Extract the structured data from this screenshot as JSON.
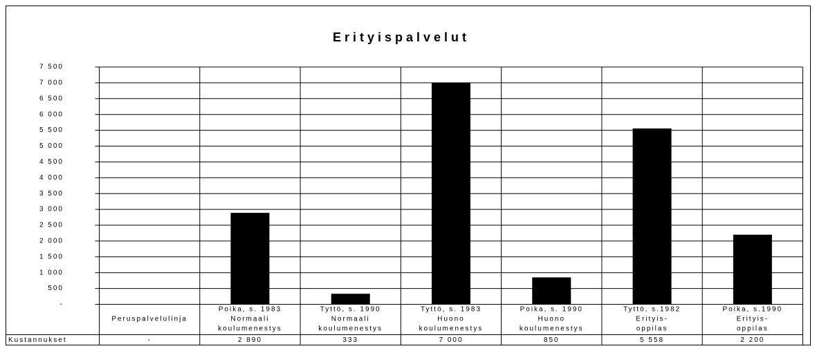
{
  "chart_data": {
    "type": "bar",
    "title": "Erityispalvelut",
    "categories": [
      [
        "Peruspalvelulinja"
      ],
      [
        "Poika, s. 1983",
        "Normaali",
        "koulumenestys"
      ],
      [
        "Tyttö, s. 1990",
        "Normaali",
        "koulumenestys"
      ],
      [
        "Tyttö, s. 1983",
        "Huono",
        "koulumenestys"
      ],
      [
        "Poika, s. 1990",
        "Huono",
        "koulumenestys"
      ],
      [
        "Tyttö, s.1982",
        "Erityis-",
        "oppilas"
      ],
      [
        "Poika, s.1990",
        "Erityis-",
        "oppilas"
      ]
    ],
    "series": [
      {
        "name": "Kustannukset",
        "color": "#000000",
        "values": [
          0,
          2890,
          333,
          7000,
          850,
          5558,
          2200
        ],
        "value_labels": [
          "-",
          "2 890",
          "333",
          "7 000",
          "850",
          "5 558",
          "2 200"
        ]
      }
    ],
    "ylim": [
      0,
      7500
    ],
    "yticks": [
      {
        "value": 0,
        "label": "-"
      },
      500,
      {
        "value": 1000,
        "label": "1 000"
      },
      {
        "value": 1500,
        "label": "1 500"
      },
      {
        "value": 2000,
        "label": "2 000"
      },
      {
        "value": 2500,
        "label": "2 500"
      },
      {
        "value": 3000,
        "label": "3 000"
      },
      {
        "value": 3500,
        "label": "3 500"
      },
      {
        "value": 4000,
        "label": "4 000"
      },
      {
        "value": 4500,
        "label": "4 500"
      },
      {
        "value": 5000,
        "label": "5 000"
      },
      {
        "value": 5500,
        "label": "5 500"
      },
      {
        "value": 6000,
        "label": "6 000"
      },
      {
        "value": 6500,
        "label": "6 500"
      },
      {
        "value": 7000,
        "label": "7 000"
      },
      {
        "value": 7500,
        "label": "7 500"
      }
    ],
    "grid": true
  }
}
